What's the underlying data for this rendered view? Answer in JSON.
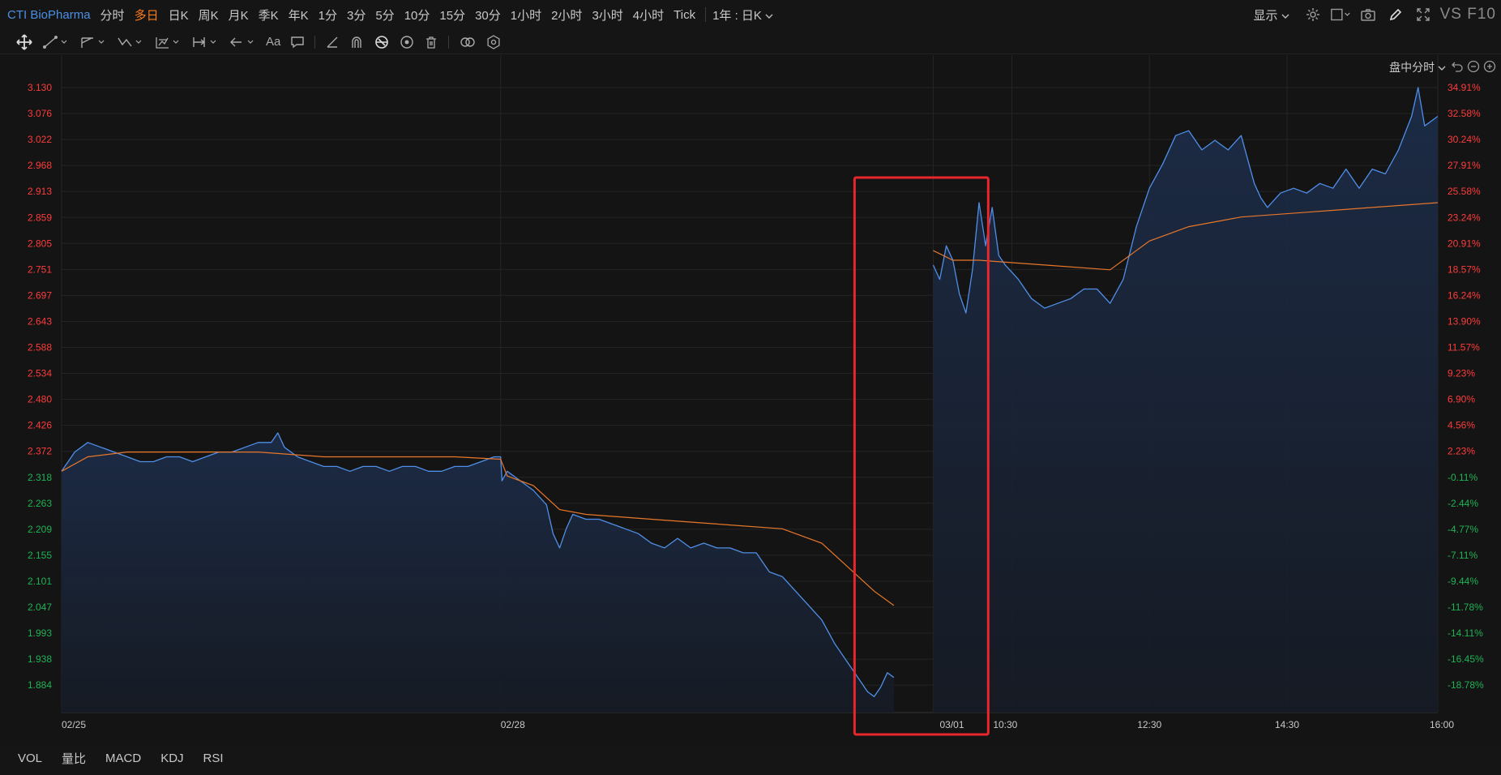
{
  "header": {
    "symbol": "CTI BioPharma",
    "tabs": [
      "分时",
      "多日",
      "日K",
      "周K",
      "月K",
      "季K",
      "年K",
      "1分",
      "3分",
      "5分",
      "10分",
      "15分",
      "30分",
      "1小时",
      "2小时",
      "3小时",
      "4小时",
      "Tick"
    ],
    "active_tab": "多日",
    "period_select": "1年 : 日K",
    "display_label": "显示",
    "brand": "VS F10"
  },
  "toolbar": {
    "icons": [
      "move-icon",
      "line-tool-icon",
      "channel-tool-icon",
      "wave-tool-icon",
      "fib-tool-icon",
      "measure-tool-icon",
      "arrow-tool-icon",
      "text-tool-icon",
      "comment-tool-icon",
      "ruler-icon",
      "magnet-icon",
      "lock-icon",
      "visibility-icon",
      "trash-icon",
      "link-icon",
      "settings-icon"
    ],
    "text_tool_label": "Aa"
  },
  "chart_mode": {
    "label": "盘中分时"
  },
  "colors": {
    "price_line": "#4f8fe8",
    "avg_line": "#e8772a",
    "up": "#ff3b3b",
    "down": "#1fb355",
    "highlight_box": "#e8262c",
    "fill_top": "#1c2c48",
    "fill_bottom": "#161b25"
  },
  "chart_data": {
    "type": "line",
    "y_left_ticks": [
      "3.130",
      "3.076",
      "3.022",
      "2.968",
      "2.913",
      "2.859",
      "2.805",
      "2.751",
      "2.697",
      "2.643",
      "2.588",
      "2.534",
      "2.480",
      "2.426",
      "2.372",
      "2.318",
      "2.263",
      "2.209",
      "2.155",
      "2.101",
      "2.047",
      "1.993",
      "1.938",
      "1.884"
    ],
    "y_right_ticks": [
      "34.91%",
      "32.58%",
      "30.24%",
      "27.91%",
      "25.58%",
      "23.24%",
      "20.91%",
      "18.57%",
      "16.24%",
      "13.90%",
      "11.57%",
      "9.23%",
      "6.90%",
      "4.56%",
      "2.23%",
      "-0.11%",
      "-2.44%",
      "-4.77%",
      "-7.11%",
      "-9.44%",
      "-11.78%",
      "-14.11%",
      "-16.45%",
      "-18.78%"
    ],
    "ylim": [
      1.884,
      3.13
    ],
    "x_labels": [
      "02/25",
      "02/28",
      "03/01",
      "10:30",
      "12:30",
      "14:30",
      "16:00"
    ],
    "series": [
      {
        "name": "price",
        "points": [
          [
            0,
            2.33
          ],
          [
            0.01,
            2.37
          ],
          [
            0.02,
            2.39
          ],
          [
            0.03,
            2.38
          ],
          [
            0.04,
            2.37
          ],
          [
            0.05,
            2.36
          ],
          [
            0.06,
            2.35
          ],
          [
            0.07,
            2.35
          ],
          [
            0.08,
            2.36
          ],
          [
            0.09,
            2.36
          ],
          [
            0.1,
            2.35
          ],
          [
            0.11,
            2.36
          ],
          [
            0.12,
            2.37
          ],
          [
            0.13,
            2.37
          ],
          [
            0.14,
            2.38
          ],
          [
            0.15,
            2.39
          ],
          [
            0.16,
            2.39
          ],
          [
            0.165,
            2.41
          ],
          [
            0.17,
            2.38
          ],
          [
            0.18,
            2.36
          ],
          [
            0.19,
            2.35
          ],
          [
            0.2,
            2.34
          ],
          [
            0.21,
            2.34
          ],
          [
            0.22,
            2.33
          ],
          [
            0.23,
            2.34
          ],
          [
            0.24,
            2.34
          ],
          [
            0.25,
            2.33
          ],
          [
            0.26,
            2.34
          ],
          [
            0.27,
            2.34
          ],
          [
            0.28,
            2.33
          ],
          [
            0.29,
            2.33
          ],
          [
            0.3,
            2.34
          ],
          [
            0.31,
            2.34
          ],
          [
            0.32,
            2.35
          ],
          [
            0.33,
            2.36
          ],
          [
            0.335,
            2.36
          ],
          [
            0.336,
            2.31
          ],
          [
            0.34,
            2.33
          ],
          [
            0.35,
            2.31
          ],
          [
            0.36,
            2.29
          ],
          [
            0.37,
            2.26
          ],
          [
            0.375,
            2.2
          ],
          [
            0.38,
            2.17
          ],
          [
            0.385,
            2.21
          ],
          [
            0.39,
            2.24
          ],
          [
            0.4,
            2.23
          ],
          [
            0.41,
            2.23
          ],
          [
            0.42,
            2.22
          ],
          [
            0.43,
            2.21
          ],
          [
            0.44,
            2.2
          ],
          [
            0.45,
            2.18
          ],
          [
            0.46,
            2.17
          ],
          [
            0.47,
            2.19
          ],
          [
            0.48,
            2.17
          ],
          [
            0.49,
            2.18
          ],
          [
            0.5,
            2.17
          ],
          [
            0.51,
            2.17
          ],
          [
            0.52,
            2.16
          ],
          [
            0.53,
            2.16
          ],
          [
            0.54,
            2.12
          ],
          [
            0.55,
            2.11
          ],
          [
            0.56,
            2.08
          ],
          [
            0.57,
            2.05
          ],
          [
            0.58,
            2.02
          ],
          [
            0.59,
            1.97
          ],
          [
            0.6,
            1.93
          ],
          [
            0.61,
            1.89
          ],
          [
            0.615,
            1.87
          ],
          [
            0.62,
            1.86
          ],
          [
            0.625,
            1.88
          ],
          [
            0.63,
            1.91
          ],
          [
            0.635,
            1.9
          ],
          [
            0.665,
            2.76
          ],
          [
            0.67,
            2.73
          ],
          [
            0.675,
            2.8
          ],
          [
            0.68,
            2.77
          ],
          [
            0.685,
            2.7
          ],
          [
            0.69,
            2.66
          ],
          [
            0.695,
            2.75
          ],
          [
            0.7,
            2.89
          ],
          [
            0.705,
            2.8
          ],
          [
            0.71,
            2.88
          ],
          [
            0.715,
            2.78
          ],
          [
            0.72,
            2.76
          ],
          [
            0.73,
            2.73
          ],
          [
            0.74,
            2.69
          ],
          [
            0.75,
            2.67
          ],
          [
            0.76,
            2.68
          ],
          [
            0.77,
            2.69
          ],
          [
            0.78,
            2.71
          ],
          [
            0.79,
            2.71
          ],
          [
            0.8,
            2.68
          ],
          [
            0.81,
            2.73
          ],
          [
            0.82,
            2.84
          ],
          [
            0.83,
            2.92
          ],
          [
            0.84,
            2.97
          ],
          [
            0.85,
            3.03
          ],
          [
            0.86,
            3.04
          ],
          [
            0.87,
            3.0
          ],
          [
            0.88,
            3.02
          ],
          [
            0.89,
            3.0
          ],
          [
            0.9,
            3.03
          ],
          [
            0.91,
            2.93
          ],
          [
            0.915,
            2.9
          ],
          [
            0.92,
            2.88
          ],
          [
            0.93,
            2.91
          ],
          [
            0.94,
            2.92
          ],
          [
            0.95,
            2.91
          ],
          [
            0.96,
            2.93
          ],
          [
            0.97,
            2.92
          ],
          [
            0.98,
            2.96
          ],
          [
            0.99,
            2.92
          ],
          [
            1.0,
            2.96
          ],
          [
            1.01,
            2.95
          ],
          [
            1.02,
            3.0
          ],
          [
            1.03,
            3.07
          ],
          [
            1.035,
            3.13
          ],
          [
            1.04,
            3.05
          ],
          [
            1.05,
            3.07
          ]
        ]
      },
      {
        "name": "avg",
        "points": [
          [
            0,
            2.33
          ],
          [
            0.02,
            2.36
          ],
          [
            0.05,
            2.37
          ],
          [
            0.1,
            2.37
          ],
          [
            0.15,
            2.37
          ],
          [
            0.2,
            2.36
          ],
          [
            0.25,
            2.36
          ],
          [
            0.3,
            2.36
          ],
          [
            0.335,
            2.355
          ],
          [
            0.34,
            2.32
          ],
          [
            0.36,
            2.3
          ],
          [
            0.38,
            2.25
          ],
          [
            0.4,
            2.24
          ],
          [
            0.45,
            2.23
          ],
          [
            0.5,
            2.22
          ],
          [
            0.55,
            2.21
          ],
          [
            0.58,
            2.18
          ],
          [
            0.6,
            2.13
          ],
          [
            0.62,
            2.08
          ],
          [
            0.635,
            2.05
          ],
          [
            0.665,
            2.79
          ],
          [
            0.68,
            2.77
          ],
          [
            0.7,
            2.77
          ],
          [
            0.75,
            2.76
          ],
          [
            0.8,
            2.75
          ],
          [
            0.83,
            2.81
          ],
          [
            0.86,
            2.84
          ],
          [
            0.9,
            2.86
          ],
          [
            0.95,
            2.87
          ],
          [
            1.0,
            2.88
          ],
          [
            1.05,
            2.89
          ]
        ]
      }
    ]
  },
  "bottom": {
    "indicators": [
      "VOL",
      "量比",
      "MACD",
      "KDJ",
      "RSI"
    ]
  }
}
